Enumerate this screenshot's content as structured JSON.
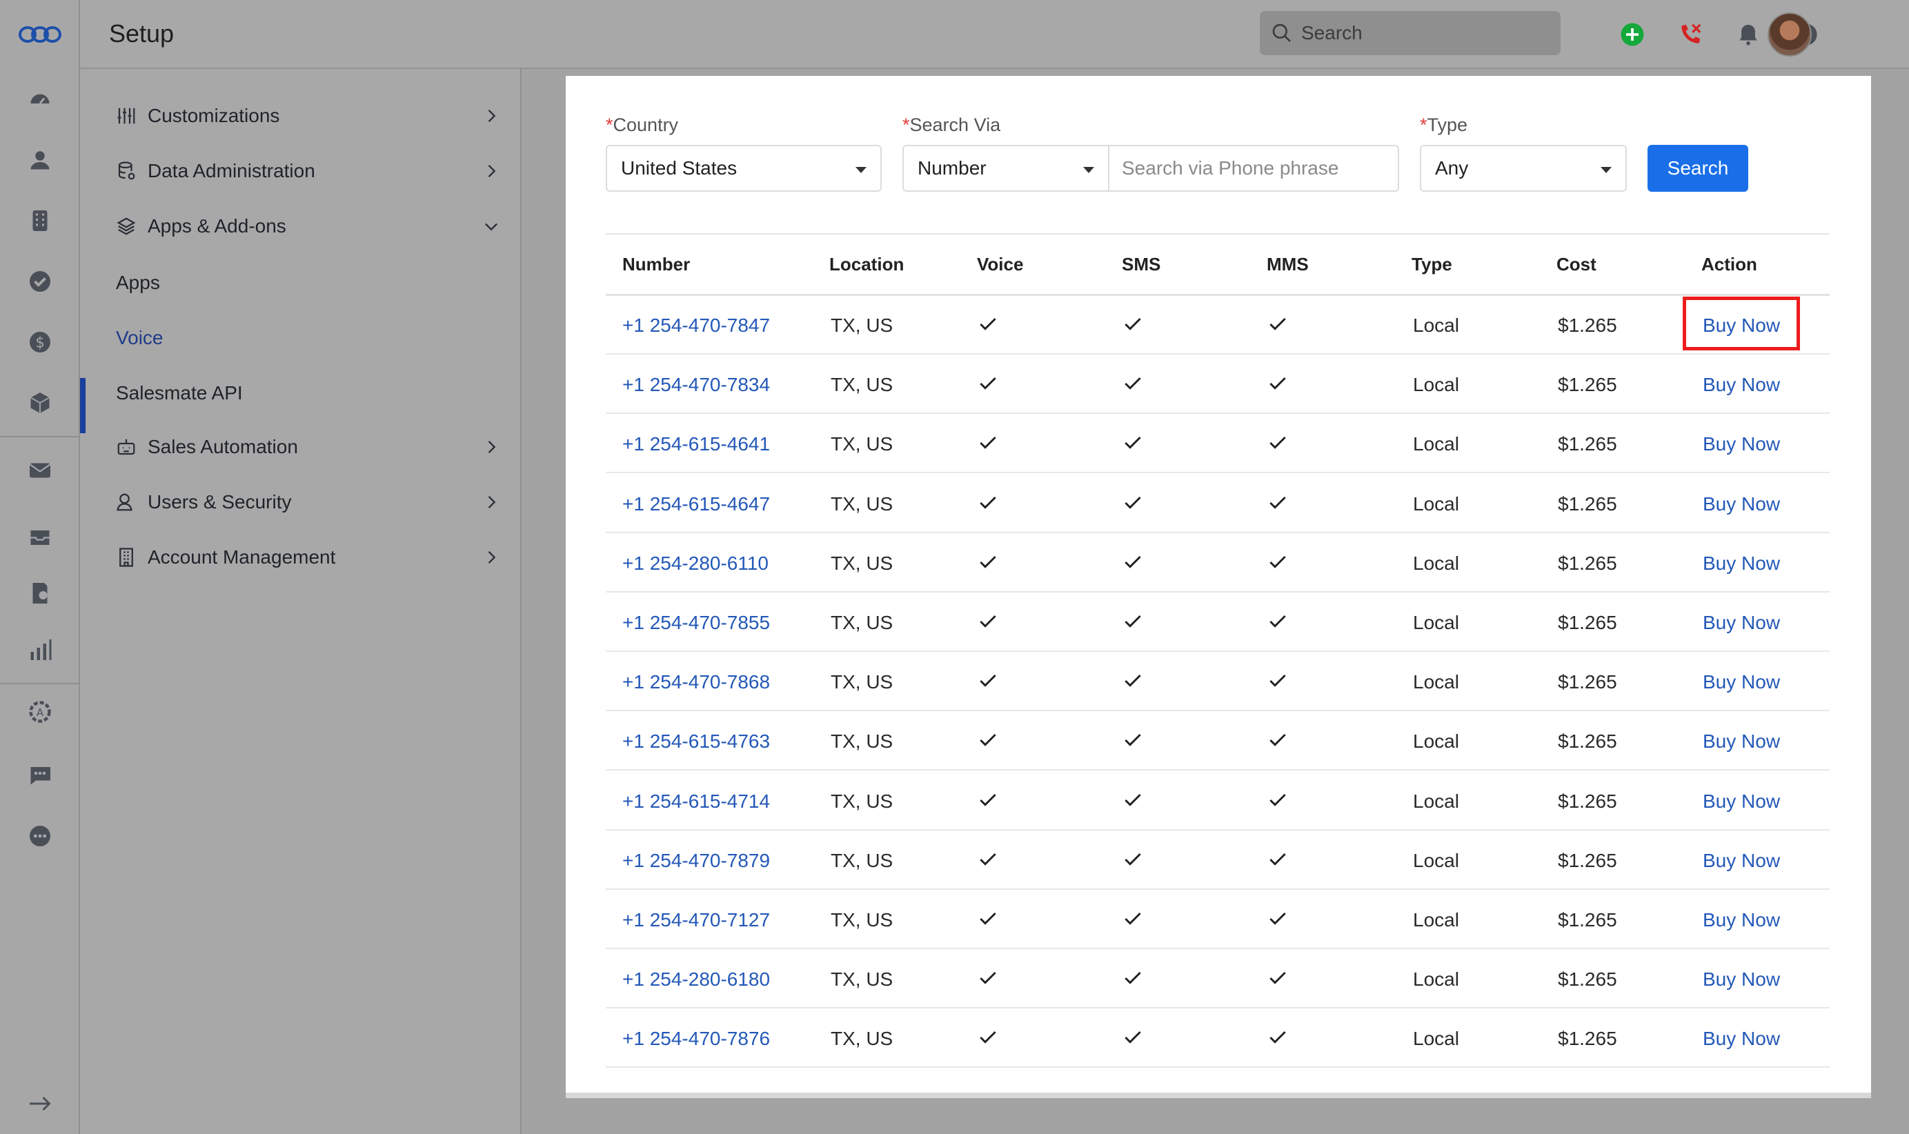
{
  "app": {
    "title": "Setup"
  },
  "topbar": {
    "search_placeholder": "Search"
  },
  "menu": {
    "items": [
      {
        "label": "Customizations",
        "icon": "sliders-icon",
        "expanded": false
      },
      {
        "label": "Data Administration",
        "icon": "database-icon",
        "expanded": false
      },
      {
        "label": "Apps & Add-ons",
        "icon": "layers-icon",
        "expanded": true
      },
      {
        "label": "Sales Automation",
        "icon": "robot-icon",
        "expanded": false
      },
      {
        "label": "Users & Security",
        "icon": "user-shield-icon",
        "expanded": false
      },
      {
        "label": "Account Management",
        "icon": "building-icon",
        "expanded": false
      }
    ],
    "subitems": [
      "Apps",
      "Voice",
      "Salesmate API"
    ],
    "active": "Voice"
  },
  "form": {
    "country_label": "Country",
    "country_value": "United States",
    "via_label": "Search Via",
    "via_value": "Number",
    "phrase_placeholder": "Search via Phone phrase",
    "type_label": "Type",
    "type_value": "Any",
    "search_button": "Search",
    "required_mark": "*"
  },
  "table": {
    "headers": [
      "Number",
      "Location",
      "Voice",
      "SMS",
      "MMS",
      "Type",
      "Cost",
      "Action"
    ],
    "rows": [
      {
        "number": "+1 254-470-7847",
        "location": "TX, US",
        "type": "Local",
        "cost": "$1.265",
        "action": "Buy Now"
      },
      {
        "number": "+1 254-470-7834",
        "location": "TX, US",
        "type": "Local",
        "cost": "$1.265",
        "action": "Buy Now"
      },
      {
        "number": "+1 254-615-4641",
        "location": "TX, US",
        "type": "Local",
        "cost": "$1.265",
        "action": "Buy Now"
      },
      {
        "number": "+1 254-615-4647",
        "location": "TX, US",
        "type": "Local",
        "cost": "$1.265",
        "action": "Buy Now"
      },
      {
        "number": "+1 254-280-6110",
        "location": "TX, US",
        "type": "Local",
        "cost": "$1.265",
        "action": "Buy Now"
      },
      {
        "number": "+1 254-470-7855",
        "location": "TX, US",
        "type": "Local",
        "cost": "$1.265",
        "action": "Buy Now"
      },
      {
        "number": "+1 254-470-7868",
        "location": "TX, US",
        "type": "Local",
        "cost": "$1.265",
        "action": "Buy Now"
      },
      {
        "number": "+1 254-615-4763",
        "location": "TX, US",
        "type": "Local",
        "cost": "$1.265",
        "action": "Buy Now"
      },
      {
        "number": "+1 254-615-4714",
        "location": "TX, US",
        "type": "Local",
        "cost": "$1.265",
        "action": "Buy Now"
      },
      {
        "number": "+1 254-470-7879",
        "location": "TX, US",
        "type": "Local",
        "cost": "$1.265",
        "action": "Buy Now"
      },
      {
        "number": "+1 254-470-7127",
        "location": "TX, US",
        "type": "Local",
        "cost": "$1.265",
        "action": "Buy Now"
      },
      {
        "number": "+1 254-280-6180",
        "location": "TX, US",
        "type": "Local",
        "cost": "$1.265",
        "action": "Buy Now"
      },
      {
        "number": "+1 254-470-7876",
        "location": "TX, US",
        "type": "Local",
        "cost": "$1.265",
        "action": "Buy Now"
      }
    ]
  },
  "colors": {
    "accent": "#1a6fe8",
    "link": "#2358b8",
    "required": "#e03b3b",
    "highlight": "#ee1c1c"
  }
}
